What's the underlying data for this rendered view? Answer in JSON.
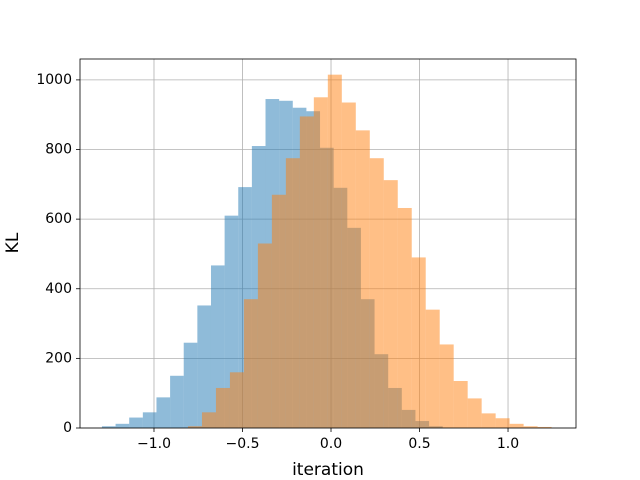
{
  "chart_data": {
    "type": "histogram",
    "xlabel": "iteration",
    "ylabel": "KL",
    "xlim": [
      -1.418,
      1.384
    ],
    "ylim": [
      0,
      1060
    ],
    "xticks": [
      {
        "value": -1,
        "label": "−1.0"
      },
      {
        "value": -0.5,
        "label": "−0.5"
      },
      {
        "value": 0,
        "label": "0.0"
      },
      0.5,
      {
        "value": 1,
        "label": "1.0"
      }
    ],
    "yticks": [
      0,
      200,
      400,
      600,
      800,
      1000
    ],
    "grid": true,
    "alpha": 0.5,
    "series": [
      {
        "color": "#1f77b4",
        "bins": [
          -1.294,
          -1.217,
          -1.14,
          -1.063,
          -0.986,
          -0.909,
          -0.832,
          -0.755,
          -0.678,
          -0.601,
          -0.524,
          -0.447,
          -0.37,
          -0.293,
          -0.216,
          -0.139,
          -0.062,
          0.015,
          0.092,
          0.169,
          0.246,
          0.323,
          0.4,
          0.477,
          0.554,
          0.631
        ],
        "values": [
          5,
          12,
          30,
          45,
          88,
          150,
          245,
          352,
          467,
          610,
          692,
          810,
          945,
          940,
          920,
          910,
          805,
          690,
          575,
          370,
          212,
          115,
          52,
          20,
          5
        ]
      },
      {
        "color": "#ff7f0e",
        "bins": [
          -0.808,
          -0.729,
          -0.65,
          -0.571,
          -0.492,
          -0.413,
          -0.334,
          -0.255,
          -0.176,
          -0.097,
          -0.018,
          0.061,
          0.14,
          0.219,
          0.298,
          0.377,
          0.456,
          0.535,
          0.614,
          0.693,
          0.772,
          0.851,
          0.93,
          1.009,
          1.088,
          1.167,
          1.246
        ],
        "values": [
          5,
          45,
          115,
          160,
          370,
          530,
          670,
          775,
          895,
          950,
          1015,
          935,
          855,
          775,
          712,
          632,
          490,
          340,
          240,
          135,
          85,
          42,
          28,
          12,
          5,
          3
        ]
      }
    ]
  }
}
